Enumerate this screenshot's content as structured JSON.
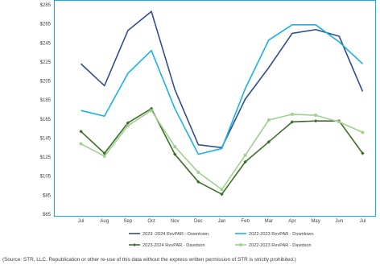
{
  "colors": {
    "background": "#ffffff",
    "frame": "#00b0f0",
    "gridline": "#d9d9d9",
    "text": "#404040"
  },
  "source_note": "(Source: STR, LLC. Republication or other re-use of this data without the express written permission of STR is strictly prohibited.)",
  "chart_data": {
    "type": "line",
    "title": "",
    "xlabel": "",
    "ylabel": "",
    "categories": [
      "Jul",
      "Aug",
      "Sep",
      "Oct",
      "Nov",
      "Dec",
      "Jan",
      "Feb",
      "Mar",
      "Apr",
      "May",
      "Jun",
      "Jul"
    ],
    "ylim": [
      65,
      285
    ],
    "yticks": [
      65,
      85,
      105,
      125,
      145,
      165,
      185,
      205,
      225,
      245,
      265,
      285
    ],
    "ytick_labels": [
      "$65",
      "$85",
      "$105",
      "$125",
      "$145",
      "$165",
      "$185",
      "$205",
      "$225",
      "$245",
      "$265",
      "$285"
    ],
    "grid": false,
    "legend_position": "bottom",
    "series": [
      {
        "name": "2023 -2024 RevPAR - Downtown",
        "color": "#2f4f8f",
        "marker": "none",
        "values": [
          223,
          200,
          258,
          278,
          196,
          138,
          135,
          186,
          219,
          255,
          259,
          252,
          194
        ]
      },
      {
        "name": "2022-2023 RevPAR - Downtown",
        "color": "#18b2e8",
        "marker": "none",
        "values": [
          174,
          168,
          213,
          237,
          176,
          128,
          134,
          197,
          248,
          264,
          264,
          246,
          223
        ]
      },
      {
        "name": "2023-2024 RevPAR - Davidson",
        "color": "#3c6e2a",
        "marker": "diamond",
        "values": [
          152,
          129,
          161,
          176,
          128,
          99,
          86,
          120,
          141,
          162,
          163,
          163,
          129
        ]
      },
      {
        "name": "2022-2023 RevPAR - Davidson",
        "color": "#9fd08d",
        "marker": "square",
        "values": [
          139,
          126,
          158,
          174,
          136,
          109,
          91,
          127,
          164,
          170,
          169,
          162,
          151
        ]
      }
    ]
  }
}
